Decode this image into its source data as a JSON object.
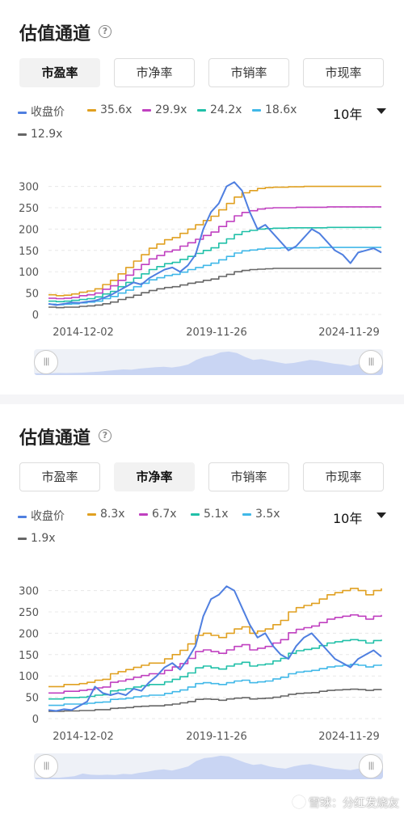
{
  "panels": [
    {
      "title": "估值通道",
      "tabs": [
        "市盈率",
        "市净率",
        "市销率",
        "市现率"
      ],
      "active_tab": 0,
      "period": "10年",
      "chart_data": {
        "type": "line",
        "x_ticks": [
          "2014-12-02",
          "2019-11-26",
          "2024-11-29"
        ],
        "y_ticks": [
          0,
          50,
          100,
          150,
          200,
          250,
          300
        ],
        "ylim": [
          0,
          320
        ],
        "grid": true,
        "legend": "top-left",
        "series": [
          {
            "name": "收盘价",
            "color": "#4f7fe0",
            "values": [
              25,
              22,
              25,
              28,
              27,
              30,
              32,
              38,
              45,
              55,
              65,
              75,
              70,
              85,
              95,
              105,
              110,
              100,
              115,
              140,
              200,
              240,
              260,
              300,
              310,
              290,
              240,
              200,
              210,
              190,
              170,
              150,
              160,
              180,
              200,
              190,
              170,
              150,
              140,
              120,
              145,
              150,
              155,
              145
            ]
          },
          {
            "name": "35.6x",
            "color": "#e0a020",
            "values": [
              46,
              44,
              45,
              48,
              52,
              55,
              60,
              70,
              80,
              95,
              110,
              125,
              140,
              155,
              165,
              175,
              180,
              190,
              200,
              210,
              220,
              230,
              245,
              260,
              275,
              285,
              290,
              295,
              297,
              298,
              298,
              299,
              299,
              300,
              300,
              300,
              300,
              300,
              300,
              300,
              300,
              300,
              300,
              300
            ]
          },
          {
            "name": "29.9x",
            "color": "#c040c0",
            "values": [
              38,
              37,
              38,
              40,
              44,
              46,
              50,
              59,
              67,
              80,
              92,
              105,
              117,
              130,
              138,
              147,
              151,
              160,
              168,
              176,
              185,
              193,
              206,
              218,
              231,
              239,
              243,
              247,
              249,
              250,
              250,
              250,
              251,
              251,
              251,
              251,
              252,
              252,
              252,
              252,
              252,
              252,
              252,
              252
            ]
          },
          {
            "name": "24.2x",
            "color": "#20c0a8",
            "values": [
              31,
              30,
              31,
              33,
              35,
              37,
              41,
              48,
              54,
              65,
              75,
              85,
              95,
              105,
              112,
              119,
              122,
              129,
              136,
              143,
              150,
              156,
              167,
              177,
              187,
              194,
              197,
              200,
              201,
              202,
              202,
              203,
              203,
              203,
              203,
              203,
              204,
              204,
              204,
              204,
              204,
              204,
              204,
              204
            ]
          },
          {
            "name": "18.6x",
            "color": "#40b8e8",
            "values": [
              24,
              23,
              24,
              25,
              27,
              29,
              31,
              37,
              42,
              50,
              57,
              65,
              73,
              81,
              86,
              91,
              94,
              99,
              105,
              110,
              115,
              120,
              128,
              136,
              144,
              149,
              151,
              153,
              155,
              155,
              156,
              156,
              156,
              156,
              156,
              157,
              157,
              157,
              157,
              157,
              157,
              157,
              157,
              157
            ]
          },
          {
            "name": "12.9x",
            "color": "#666666",
            "values": [
              17,
              16,
              17,
              17,
              19,
              20,
              22,
              25,
              29,
              35,
              40,
              45,
              51,
              56,
              60,
              63,
              65,
              69,
              73,
              76,
              80,
              83,
              89,
              94,
              100,
              103,
              105,
              106,
              107,
              108,
              108,
              108,
              108,
              108,
              108,
              108,
              108,
              108,
              108,
              108,
              108,
              108,
              108,
              108
            ]
          }
        ]
      }
    },
    {
      "title": "估值通道",
      "tabs": [
        "市盈率",
        "市净率",
        "市销率",
        "市现率"
      ],
      "active_tab": 1,
      "period": "10年",
      "chart_data": {
        "type": "line",
        "x_ticks": [
          "2014-12-02",
          "2019-11-26",
          "2024-11-29"
        ],
        "y_ticks": [
          0,
          50,
          100,
          150,
          200,
          250,
          300
        ],
        "ylim": [
          0,
          320
        ],
        "grid": true,
        "legend": "top-left",
        "series": [
          {
            "name": "收盘价",
            "color": "#4f7fe0",
            "values": [
              20,
              18,
              22,
              20,
              30,
              40,
              75,
              60,
              55,
              60,
              55,
              70,
              65,
              85,
              100,
              120,
              130,
              115,
              140,
              170,
              240,
              280,
              290,
              310,
              300,
              260,
              220,
              190,
              200,
              170,
              150,
              140,
              170,
              190,
              200,
              180,
              160,
              140,
              130,
              120,
              140,
              150,
              160,
              145
            ]
          },
          {
            "name": "8.3x",
            "color": "#e0a020",
            "values": [
              75,
              75,
              80,
              80,
              82,
              85,
              90,
              92,
              105,
              110,
              115,
              120,
              125,
              130,
              130,
              140,
              150,
              160,
              175,
              195,
              200,
              195,
              190,
              200,
              210,
              215,
              200,
              205,
              210,
              220,
              230,
              250,
              260,
              265,
              270,
              280,
              290,
              295,
              300,
              305,
              300,
              290,
              300,
              305
            ]
          },
          {
            "name": "6.7x",
            "color": "#c040c0",
            "values": [
              60,
              60,
              64,
              64,
              66,
              68,
              72,
              74,
              85,
              88,
              92,
              97,
              101,
              105,
              105,
              113,
              121,
              129,
              141,
              157,
              161,
              157,
              153,
              161,
              169,
              173,
              161,
              165,
              169,
              177,
              185,
              201,
              209,
              213,
              217,
              225,
              233,
              237,
              240,
              243,
              240,
              233,
              240,
              243
            ]
          },
          {
            "name": "5.1x",
            "color": "#20c0a8",
            "values": [
              46,
              46,
              49,
              49,
              50,
              52,
              55,
              56,
              65,
              67,
              70,
              74,
              77,
              80,
              80,
              86,
              92,
              98,
              107,
              119,
              123,
              119,
              116,
              123,
              128,
              132,
              123,
              126,
              128,
              135,
              141,
              153,
              159,
              162,
              165,
              171,
              177,
              180,
              183,
              185,
              183,
              177,
              183,
              185
            ]
          },
          {
            "name": "3.5x",
            "color": "#40b8e8",
            "values": [
              31,
              31,
              34,
              34,
              34,
              36,
              38,
              39,
              45,
              46,
              48,
              51,
              53,
              55,
              55,
              59,
              63,
              67,
              74,
              82,
              84,
              82,
              80,
              84,
              88,
              90,
              84,
              86,
              88,
              93,
              97,
              105,
              109,
              111,
              113,
              117,
              121,
              123,
              125,
              127,
              125,
              121,
              125,
              127
            ]
          },
          {
            "name": "1.9x",
            "color": "#666666",
            "values": [
              17,
              17,
              18,
              18,
              19,
              19,
              21,
              21,
              24,
              25,
              26,
              28,
              29,
              30,
              30,
              32,
              34,
              37,
              40,
              45,
              46,
              45,
              43,
              46,
              48,
              49,
              46,
              47,
              48,
              50,
              53,
              57,
              59,
              60,
              61,
              64,
              66,
              67,
              68,
              69,
              68,
              66,
              68,
              69
            ]
          }
        ]
      }
    }
  ],
  "watermark": "雪球：分红发烧友"
}
